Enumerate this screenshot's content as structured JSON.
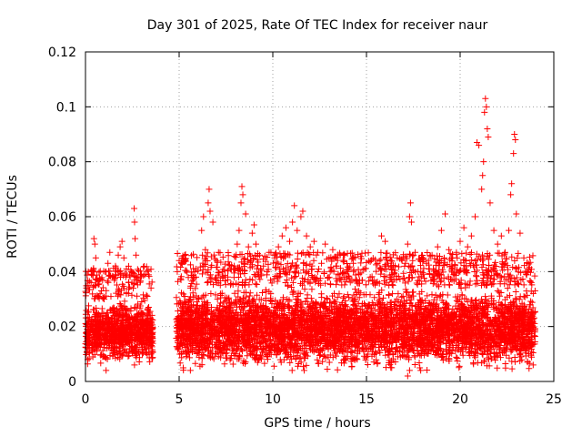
{
  "chart_data": {
    "type": "scatter",
    "title": "Day 301 of 2025, Rate Of TEC Index for receiver naur",
    "xlabel": "GPS time / hours",
    "ylabel": "ROTI / TECUs",
    "xlim": [
      0,
      25
    ],
    "ylim": [
      0,
      0.12
    ],
    "xticks": [
      0,
      5,
      10,
      15,
      20,
      25
    ],
    "xtick_labels": [
      "0",
      "5",
      "10",
      "15",
      "20",
      "25"
    ],
    "yticks": [
      0,
      0.02,
      0.04,
      0.06,
      0.08,
      0.1,
      0.12
    ],
    "ytick_labels": [
      "0",
      "0.02",
      "0.04",
      "0.06",
      "0.08",
      "0.1",
      "0.12"
    ],
    "grid": true,
    "marker": "plus",
    "color": "#ff0000",
    "series": [
      {
        "name": "ROTI",
        "points": [
          [
            0.05,
            0.034
          ],
          [
            0.15,
            0.04
          ],
          [
            0.3,
            0.036
          ],
          [
            0.45,
            0.052
          ],
          [
            0.5,
            0.05
          ],
          [
            0.55,
            0.045
          ],
          [
            0.7,
            0.031
          ],
          [
            0.85,
            0.033
          ],
          [
            1.0,
            0.03
          ],
          [
            1.1,
            0.04
          ],
          [
            1.2,
            0.043
          ],
          [
            1.3,
            0.047
          ],
          [
            1.45,
            0.038
          ],
          [
            1.6,
            0.042
          ],
          [
            1.75,
            0.046
          ],
          [
            1.85,
            0.049
          ],
          [
            1.95,
            0.051
          ],
          [
            2.05,
            0.045
          ],
          [
            2.15,
            0.038
          ],
          [
            2.3,
            0.036
          ],
          [
            2.45,
            0.04
          ],
          [
            2.6,
            0.063
          ],
          [
            2.62,
            0.058
          ],
          [
            2.65,
            0.052
          ],
          [
            2.7,
            0.046
          ],
          [
            3.0,
            0.029
          ],
          [
            3.3,
            0.031
          ],
          [
            3.5,
            0.034
          ],
          [
            4.9,
            0.04
          ],
          [
            5.0,
            0.044
          ],
          [
            5.1,
            0.037
          ],
          [
            5.3,
            0.031
          ],
          [
            5.6,
            0.034
          ],
          [
            5.9,
            0.038
          ],
          [
            6.2,
            0.055
          ],
          [
            6.3,
            0.06
          ],
          [
            6.4,
            0.048
          ],
          [
            6.55,
            0.065
          ],
          [
            6.6,
            0.07
          ],
          [
            6.65,
            0.062
          ],
          [
            6.8,
            0.058
          ],
          [
            7.0,
            0.044
          ],
          [
            7.3,
            0.04
          ],
          [
            7.6,
            0.037
          ],
          [
            7.9,
            0.041
          ],
          [
            8.1,
            0.05
          ],
          [
            8.2,
            0.055
          ],
          [
            8.3,
            0.065
          ],
          [
            8.35,
            0.071
          ],
          [
            8.4,
            0.068
          ],
          [
            8.55,
            0.061
          ],
          [
            8.7,
            0.049
          ],
          [
            8.9,
            0.054
          ],
          [
            9.0,
            0.057
          ],
          [
            9.1,
            0.05
          ],
          [
            9.3,
            0.046
          ],
          [
            9.5,
            0.042
          ],
          [
            9.7,
            0.04
          ],
          [
            9.9,
            0.047
          ],
          [
            10.1,
            0.045
          ],
          [
            10.3,
            0.049
          ],
          [
            10.5,
            0.053
          ],
          [
            10.7,
            0.056
          ],
          [
            10.9,
            0.051
          ],
          [
            11.05,
            0.058
          ],
          [
            11.15,
            0.064
          ],
          [
            11.3,
            0.055
          ],
          [
            11.5,
            0.06
          ],
          [
            11.6,
            0.062
          ],
          [
            11.8,
            0.053
          ],
          [
            12.0,
            0.049
          ],
          [
            12.2,
            0.051
          ],
          [
            12.4,
            0.047
          ],
          [
            12.6,
            0.043
          ],
          [
            12.8,
            0.05
          ],
          [
            13.0,
            0.045
          ],
          [
            13.2,
            0.048
          ],
          [
            13.4,
            0.042
          ],
          [
            13.6,
            0.046
          ],
          [
            13.8,
            0.044
          ],
          [
            14.0,
            0.04
          ],
          [
            14.3,
            0.043
          ],
          [
            14.6,
            0.039
          ],
          [
            14.9,
            0.041
          ],
          [
            15.2,
            0.038
          ],
          [
            15.5,
            0.036
          ],
          [
            15.8,
            0.053
          ],
          [
            16.0,
            0.051
          ],
          [
            16.3,
            0.042
          ],
          [
            16.6,
            0.037
          ],
          [
            16.9,
            0.044
          ],
          [
            17.2,
            0.05
          ],
          [
            17.3,
            0.06
          ],
          [
            17.35,
            0.065
          ],
          [
            17.4,
            0.058
          ],
          [
            17.6,
            0.047
          ],
          [
            17.9,
            0.04
          ],
          [
            18.2,
            0.043
          ],
          [
            18.5,
            0.046
          ],
          [
            18.8,
            0.049
          ],
          [
            19.0,
            0.055
          ],
          [
            19.2,
            0.061
          ],
          [
            19.4,
            0.048
          ],
          [
            19.6,
            0.045
          ],
          [
            19.8,
            0.047
          ],
          [
            20.0,
            0.051
          ],
          [
            20.2,
            0.056
          ],
          [
            20.4,
            0.049
          ],
          [
            20.6,
            0.053
          ],
          [
            20.8,
            0.06
          ],
          [
            20.9,
            0.087
          ],
          [
            21.0,
            0.086
          ],
          [
            21.15,
            0.07
          ],
          [
            21.2,
            0.075
          ],
          [
            21.25,
            0.08
          ],
          [
            21.3,
            0.098
          ],
          [
            21.35,
            0.103
          ],
          [
            21.4,
            0.1
          ],
          [
            21.45,
            0.092
          ],
          [
            21.5,
            0.089
          ],
          [
            21.6,
            0.065
          ],
          [
            21.8,
            0.055
          ],
          [
            22.0,
            0.05
          ],
          [
            22.2,
            0.053
          ],
          [
            22.4,
            0.047
          ],
          [
            22.6,
            0.055
          ],
          [
            22.7,
            0.068
          ],
          [
            22.75,
            0.072
          ],
          [
            22.85,
            0.083
          ],
          [
            22.9,
            0.09
          ],
          [
            22.95,
            0.088
          ],
          [
            23.0,
            0.061
          ],
          [
            23.2,
            0.054
          ],
          [
            23.4,
            0.045
          ],
          [
            23.6,
            0.04
          ],
          [
            23.8,
            0.036
          ],
          [
            24.0,
            0.033
          ]
        ],
        "bulk_segments": [
          {
            "x_range": [
              0,
              3.6
            ],
            "y_min": 0.006,
            "y_max": 0.03
          },
          {
            "x_range": [
              4.85,
              24.0
            ],
            "y_min": 0.004,
            "y_max": 0.035
          }
        ],
        "minimum_points": [
          [
            1.1,
            0.004
          ],
          [
            5.6,
            0.004
          ],
          [
            17.2,
            0.002
          ],
          [
            17.3,
            0.004
          ],
          [
            23.9,
            0.006
          ]
        ]
      }
    ]
  }
}
